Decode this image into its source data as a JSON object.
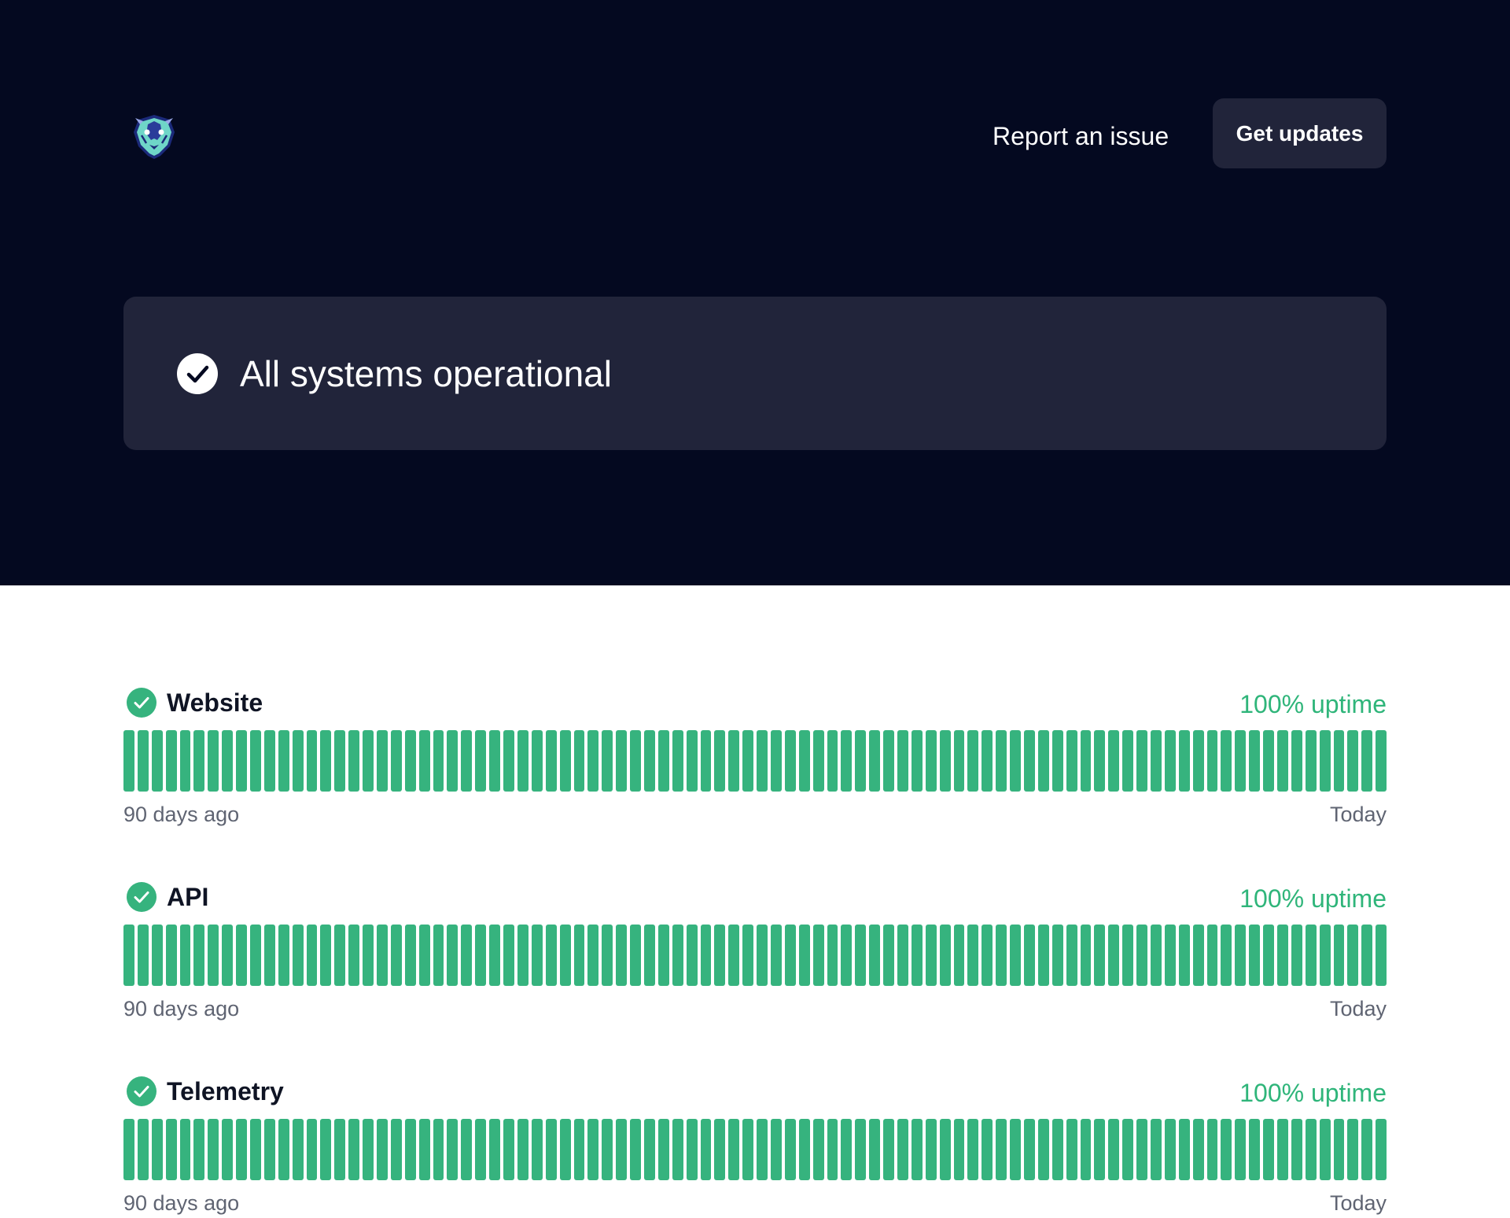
{
  "header": {
    "logo_name": "brand-logo",
    "report_link": "Report an issue",
    "updates_button": "Get updates"
  },
  "status": {
    "text": "All systems operational",
    "icon": "check-circle-icon"
  },
  "colors": {
    "hero_bg": "#040920",
    "card_bg": "#21243a",
    "operational": "#36b37e",
    "uptime_text": "#2fb57a"
  },
  "components": [
    {
      "name": "Website",
      "uptime": "100% uptime",
      "uptime_percent": 100,
      "days": 90,
      "range_start": "90 days ago",
      "range_end": "Today"
    },
    {
      "name": "API",
      "uptime": "100% uptime",
      "uptime_percent": 100,
      "days": 90,
      "range_start": "90 days ago",
      "range_end": "Today"
    },
    {
      "name": "Telemetry",
      "uptime": "100% uptime",
      "uptime_percent": 100,
      "days": 90,
      "range_start": "90 days ago",
      "range_end": "Today"
    }
  ]
}
